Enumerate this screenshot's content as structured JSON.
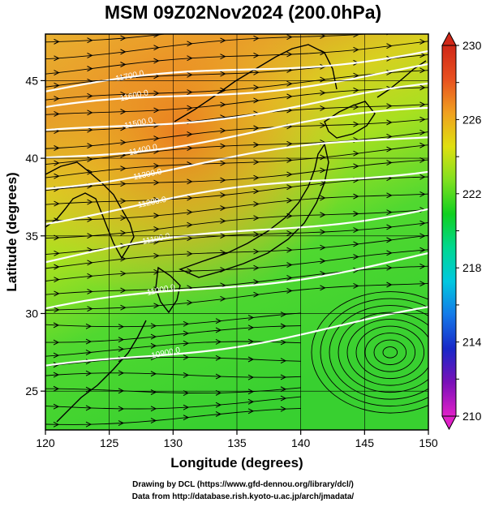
{
  "title": "MSM 09Z02Nov2024 (200.0hPa)",
  "footer": {
    "line1": "Drawing by DCL (https://www.gfd-dennou.org/library/dcl/)",
    "line2": "Data from http://database.rish.kyoto-u.ac.jp/arch/jmadata/"
  },
  "chart_data": {
    "type": "heatmap",
    "variable": "temperature contours + wind streamlines",
    "xlabel": "Longitude (degrees)",
    "ylabel": "Latitude  (degrees)",
    "xlim": [
      120,
      150
    ],
    "ylim": [
      22.5,
      48
    ],
    "x_ticks": [
      120,
      125,
      130,
      135,
      140,
      145,
      150
    ],
    "y_ticks": [
      25,
      30,
      35,
      40,
      45
    ],
    "colorbar": {
      "range": [
        210,
        230
      ],
      "tick_values": [
        210,
        214,
        218,
        222,
        226,
        230
      ],
      "colors": [
        "#e020c8",
        "#7a10b8",
        "#1828c8",
        "#1478e8",
        "#00c8e0",
        "#00d890",
        "#10d020",
        "#80e020",
        "#e0e010",
        "#f0a020",
        "#e85020",
        "#d02818"
      ]
    },
    "contour_labels": [
      "11700.0",
      "11600.0",
      "11500.0",
      "11400.0",
      "11300.0",
      "11200.0",
      "11100.0",
      "11000.0",
      "10900.0"
    ],
    "cyclone_center": {
      "lon": 147,
      "lat": 27.5
    }
  }
}
